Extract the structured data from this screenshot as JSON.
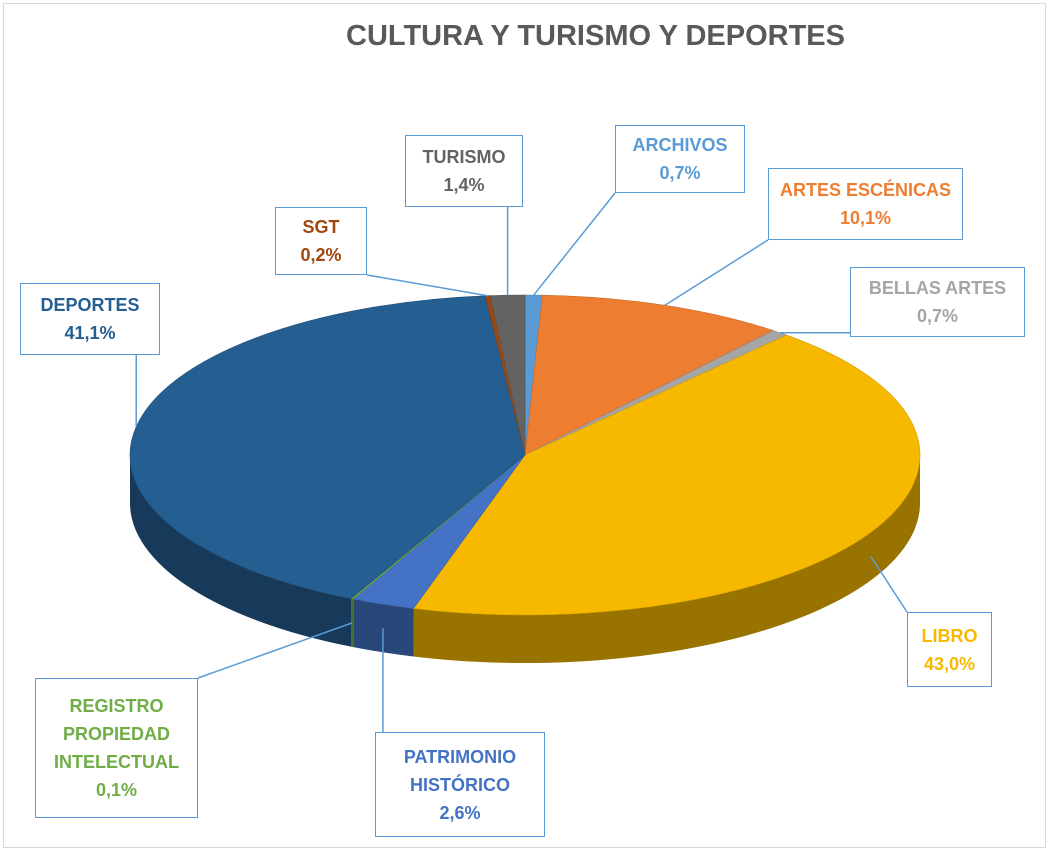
{
  "chart_data": {
    "type": "pie",
    "title": "CULTURA Y TURISMO Y DEPORTES",
    "categories": [
      "ARCHIVOS",
      "ARTES ESCÉNICAS",
      "BELLAS ARTES",
      "LIBRO",
      "PATRIMONIO HISTÓRICO",
      "REGISTRO PROPIEDAD INTELECTUAL",
      "DEPORTES",
      "SGT",
      "TURISMO"
    ],
    "values": [
      0.7,
      10.1,
      0.7,
      43.0,
      2.6,
      0.1,
      41.1,
      0.2,
      1.4
    ],
    "value_labels": [
      "0,7%",
      "10,1%",
      "0,7%",
      "43,0%",
      "2,6%",
      "0,1%",
      "41,1%",
      "0,2%",
      "1,4%"
    ],
    "colors": [
      "#5b9bd5",
      "#ed7d31",
      "#a5a5a5",
      "#f7b900",
      "#4472c4",
      "#70ad47",
      "#255e91",
      "#9e480e",
      "#636363"
    ]
  }
}
